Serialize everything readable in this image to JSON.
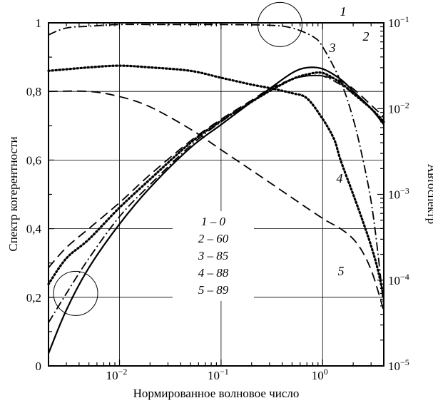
{
  "chart_data": {
    "type": "line",
    "xlabel": "Нормированное волновое число",
    "ylabel_left": "Спектр когерентности",
    "ylabel_right": "Автоспектр",
    "x_scale": "log",
    "xlim": [
      0.002,
      4
    ],
    "ylim_left": [
      0,
      1
    ],
    "ylim_right": [
      1e-05,
      0.1
    ],
    "x_ticks": [
      "10^-2",
      "10^-1",
      "10^0"
    ],
    "y_ticks_left": [
      "0",
      "0,2",
      "0,4",
      "0,6",
      "0,8",
      "1"
    ],
    "y_ticks_right": [
      "10^-5",
      "10^-4",
      "10^-3",
      "10^-2",
      "10^-1"
    ],
    "grid": true,
    "legend": {
      "placement": "center",
      "entries": [
        "1 – 0",
        "2 – 60",
        "3 – 85",
        "4 – 88",
        "5 – 89"
      ]
    },
    "curve_labels": [
      "1",
      "2",
      "3",
      "4",
      "5"
    ],
    "series": [
      {
        "axis": "left",
        "style": "dash-dot",
        "x": [
          0.002,
          0.003,
          0.005,
          0.01,
          0.03,
          0.1,
          0.3,
          0.5,
          0.8,
          1.0,
          1.5,
          2.0,
          2.5,
          3.0,
          3.5,
          4.0
        ],
        "values": [
          0.965,
          0.985,
          0.99,
          0.995,
          0.995,
          0.995,
          0.993,
          0.985,
          0.96,
          0.93,
          0.83,
          0.72,
          0.6,
          0.48,
          0.33,
          0.17
        ]
      },
      {
        "axis": "left",
        "style": "dotted",
        "x": [
          0.002,
          0.005,
          0.01,
          0.02,
          0.05,
          0.1,
          0.2,
          0.3,
          0.5,
          0.7,
          1.0,
          1.3,
          1.5,
          2.0,
          2.5,
          3.0,
          3.5,
          4.0
        ],
        "values": [
          0.86,
          0.87,
          0.875,
          0.87,
          0.86,
          0.84,
          0.82,
          0.81,
          0.795,
          0.78,
          0.72,
          0.66,
          0.6,
          0.5,
          0.42,
          0.35,
          0.28,
          0.2
        ]
      },
      {
        "axis": "left",
        "style": "long-dash",
        "x": [
          0.002,
          0.005,
          0.01,
          0.02,
          0.05,
          0.1,
          0.2,
          0.3,
          0.5,
          1.0,
          1.5,
          2.0,
          2.5,
          3.0,
          3.5,
          4.0
        ],
        "values": [
          0.8,
          0.8,
          0.785,
          0.755,
          0.69,
          0.63,
          0.57,
          0.535,
          0.49,
          0.43,
          0.4,
          0.37,
          0.33,
          0.28,
          0.22,
          0.16
        ]
      },
      {
        "axis": "right",
        "style": "solid",
        "x": [
          0.002,
          0.003,
          0.005,
          0.01,
          0.02,
          0.05,
          0.1,
          0.2,
          0.3,
          0.5,
          0.7,
          1.0,
          1.5,
          2.0,
          3.0,
          4.0
        ],
        "values": [
          1.4e-05,
          4.5e-05,
          0.00014,
          0.00045,
          0.0012,
          0.0035,
          0.0065,
          0.012,
          0.017,
          0.026,
          0.03,
          0.029,
          0.022,
          0.016,
          0.01,
          0.0065
        ]
      },
      {
        "axis": "right",
        "style": "dash-dot",
        "x": [
          0.002,
          0.003,
          0.005,
          0.01,
          0.02,
          0.05,
          0.1,
          0.2,
          0.3,
          0.5,
          0.7,
          1.0,
          1.5,
          2.0,
          3.0,
          4.0
        ],
        "values": [
          3.2e-05,
          7e-05,
          0.00018,
          0.00055,
          0.0013,
          0.0037,
          0.007,
          0.012,
          0.016,
          0.022,
          0.024,
          0.024,
          0.019,
          0.015,
          0.01,
          0.007
        ]
      },
      {
        "axis": "right",
        "style": "dotted",
        "x": [
          0.002,
          0.003,
          0.005,
          0.01,
          0.02,
          0.05,
          0.1,
          0.2,
          0.3,
          0.5,
          0.7,
          1.0,
          1.5,
          2.0,
          3.0,
          4.0
        ],
        "values": [
          9e-05,
          0.00018,
          0.0003,
          0.0007,
          0.0015,
          0.004,
          0.0072,
          0.012,
          0.016,
          0.022,
          0.025,
          0.026,
          0.02,
          0.015,
          0.01,
          0.007
        ]
      },
      {
        "axis": "right",
        "style": "long-dash",
        "x": [
          0.002,
          0.003,
          0.005,
          0.01,
          0.02,
          0.05,
          0.1,
          0.2,
          0.3,
          0.5,
          0.7,
          1.0,
          1.5,
          2.0,
          3.0,
          4.0
        ],
        "values": [
          0.00014,
          0.00024,
          0.0004,
          0.0008,
          0.0017,
          0.0042,
          0.0075,
          0.0125,
          0.017,
          0.022,
          0.024,
          0.024,
          0.021,
          0.017,
          0.011,
          0.008
        ]
      }
    ],
    "circles": [
      {
        "axis": "left",
        "x": 0.38,
        "y": 0.995
      },
      {
        "axis": "right",
        "x": 0.0037,
        "y": 7e-05
      }
    ]
  }
}
